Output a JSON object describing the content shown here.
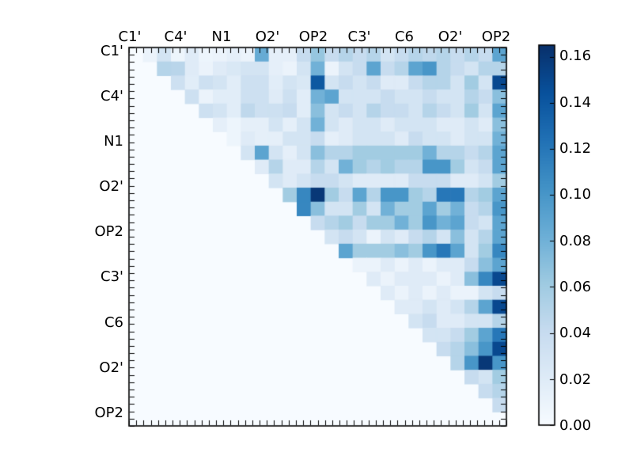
{
  "chart_data": {
    "type": "heatmap",
    "title": "",
    "xlabel": "",
    "ylabel": "",
    "x_tick_labels": [
      "C1'",
      "C4'",
      "N1",
      "O2'",
      "OP2",
      "C3'",
      "C6",
      "O2'",
      "OP2"
    ],
    "y_tick_labels": [
      "C1'",
      "C4'",
      "N1",
      "O2'",
      "OP2",
      "C3'",
      "C6",
      "O2'",
      "OP2"
    ],
    "n_rows": 27,
    "n_cols": 27,
    "triangular": "upper",
    "grid": false,
    "legend": false,
    "vmin": 0.0,
    "vmax": 0.165,
    "colormap": "Blues",
    "colormap_stops": [
      "#f7fbff",
      "#deebf7",
      "#c6dbef",
      "#9ecae1",
      "#6baed6",
      "#4292c6",
      "#2171b5",
      "#08519c",
      "#08306b"
    ],
    "colorbar": {
      "tick_labels": [
        "0.16",
        "0.14",
        "0.12",
        "0.10",
        "0.08",
        "0.06",
        "0.04",
        "0.02",
        "0.00"
      ],
      "tick_values": [
        0.16,
        0.14,
        0.12,
        0.1,
        0.08,
        0.06,
        0.04,
        0.02,
        0.0
      ],
      "position": "right"
    },
    "matrix": [
      [
        0,
        0.01,
        0.03,
        0.008,
        0.02,
        0.008,
        0.01,
        0.015,
        0.01,
        0.085,
        0.015,
        0.015,
        0.04,
        0.065,
        0.04,
        0.05,
        0.04,
        0.05,
        0.03,
        0.04,
        0.05,
        0.045,
        0.05,
        0.04,
        0.05,
        0.04,
        0.09
      ],
      [
        0,
        0,
        0.05,
        0.048,
        0.02,
        0.01,
        0.02,
        0.025,
        0.03,
        0.03,
        0.015,
        0.01,
        0.03,
        0.08,
        0.01,
        0.03,
        0.04,
        0.09,
        0.04,
        0.05,
        0.09,
        0.1,
        0.05,
        0.04,
        0.03,
        0.05,
        0.05
      ],
      [
        0,
        0,
        0,
        0.035,
        0.018,
        0.035,
        0.03,
        0.018,
        0.035,
        0.035,
        0.018,
        0.03,
        0.025,
        0.14,
        0.03,
        0.04,
        0.03,
        0.04,
        0.02,
        0.02,
        0.04,
        0.05,
        0.05,
        0.03,
        0.06,
        0.03,
        0.15
      ],
      [
        0,
        0,
        0,
        0,
        0.035,
        0.01,
        0.018,
        0.018,
        0.035,
        0.035,
        0.02,
        0.035,
        0.018,
        0.08,
        0.09,
        0.03,
        0.03,
        0.03,
        0.04,
        0.03,
        0.03,
        0.04,
        0.03,
        0.03,
        0.05,
        0.04,
        0.07
      ],
      [
        0,
        0,
        0,
        0,
        0,
        0.035,
        0.03,
        0.018,
        0.045,
        0.035,
        0.035,
        0.04,
        0.018,
        0.07,
        0.03,
        0.04,
        0.03,
        0.05,
        0.04,
        0.04,
        0.03,
        0.05,
        0.04,
        0.03,
        0.06,
        0.03,
        0.09
      ],
      [
        0,
        0,
        0,
        0,
        0,
        0,
        0.015,
        0.008,
        0.015,
        0.015,
        0.03,
        0.015,
        0.03,
        0.08,
        0.03,
        0.02,
        0.03,
        0.03,
        0.02,
        0.03,
        0.03,
        0.03,
        0.02,
        0.02,
        0.03,
        0.02,
        0.07
      ],
      [
        0,
        0,
        0,
        0,
        0,
        0,
        0,
        0.008,
        0.02,
        0.015,
        0.015,
        0.03,
        0.03,
        0.04,
        0.015,
        0.02,
        0.03,
        0.03,
        0.03,
        0.02,
        0.04,
        0.03,
        0.03,
        0.02,
        0.03,
        0.03,
        0.08
      ],
      [
        0,
        0,
        0,
        0,
        0,
        0,
        0,
        0,
        0.03,
        0.09,
        0.03,
        0.015,
        0.03,
        0.07,
        0.05,
        0.05,
        0.06,
        0.06,
        0.06,
        0.06,
        0.06,
        0.08,
        0.05,
        0.05,
        0.04,
        0.05,
        0.09
      ],
      [
        0,
        0,
        0,
        0,
        0,
        0,
        0,
        0,
        0,
        0.02,
        0.05,
        0.02,
        0.02,
        0.05,
        0.03,
        0.08,
        0.06,
        0.05,
        0.06,
        0.05,
        0.05,
        0.1,
        0.1,
        0.06,
        0.03,
        0.04,
        0.09
      ],
      [
        0,
        0,
        0,
        0,
        0,
        0,
        0,
        0,
        0,
        0,
        0.03,
        0.02,
        0.03,
        0.04,
        0.04,
        0.03,
        0.02,
        0.02,
        0.02,
        0.02,
        0.04,
        0.04,
        0.04,
        0.02,
        0.02,
        0.03,
        0.06
      ],
      [
        0,
        0,
        0,
        0,
        0,
        0,
        0,
        0,
        0,
        0,
        0,
        0.06,
        0.11,
        0.16,
        0.06,
        0.04,
        0.09,
        0.05,
        0.1,
        0.1,
        0.06,
        0.05,
        0.12,
        0.12,
        0.05,
        0.06,
        0.09
      ],
      [
        0,
        0,
        0,
        0,
        0,
        0,
        0,
        0,
        0,
        0,
        0,
        0,
        0.11,
        0.07,
        0.03,
        0.03,
        0.06,
        0.03,
        0.08,
        0.06,
        0.06,
        0.09,
        0.06,
        0.08,
        0.04,
        0.05,
        0.1
      ],
      [
        0,
        0,
        0,
        0,
        0,
        0,
        0,
        0,
        0,
        0,
        0,
        0,
        0,
        0.04,
        0.05,
        0.06,
        0.04,
        0.06,
        0.06,
        0.08,
        0.06,
        0.1,
        0.08,
        0.09,
        0.04,
        0.03,
        0.09
      ],
      [
        0,
        0,
        0,
        0,
        0,
        0,
        0,
        0,
        0,
        0,
        0,
        0,
        0,
        0,
        0.03,
        0.04,
        0.03,
        0.01,
        0.03,
        0.02,
        0.04,
        0.05,
        0.03,
        0.07,
        0.03,
        0.05,
        0.09
      ],
      [
        0,
        0,
        0,
        0,
        0,
        0,
        0,
        0,
        0,
        0,
        0,
        0,
        0,
        0,
        0,
        0.09,
        0.06,
        0.06,
        0.06,
        0.07,
        0.06,
        0.1,
        0.12,
        0.09,
        0.03,
        0.06,
        0.11
      ],
      [
        0,
        0,
        0,
        0,
        0,
        0,
        0,
        0,
        0,
        0,
        0,
        0,
        0,
        0,
        0,
        0,
        0.01,
        0.01,
        0.02,
        0.01,
        0.02,
        0.01,
        0.02,
        0.02,
        0.04,
        0.07,
        0.09
      ],
      [
        0,
        0,
        0,
        0,
        0,
        0,
        0,
        0,
        0,
        0,
        0,
        0,
        0,
        0,
        0,
        0,
        0,
        0.02,
        0.01,
        0.02,
        0.02,
        0.02,
        0.01,
        0.02,
        0.07,
        0.11,
        0.15
      ],
      [
        0,
        0,
        0,
        0,
        0,
        0,
        0,
        0,
        0,
        0,
        0,
        0,
        0,
        0,
        0,
        0,
        0,
        0,
        0.02,
        0.01,
        0.02,
        0.01,
        0.02,
        0.01,
        0.01,
        0.03,
        0.04
      ],
      [
        0,
        0,
        0,
        0,
        0,
        0,
        0,
        0,
        0,
        0,
        0,
        0,
        0,
        0,
        0,
        0,
        0,
        0,
        0,
        0.02,
        0.02,
        0.03,
        0.02,
        0.03,
        0.05,
        0.09,
        0.15
      ],
      [
        0,
        0,
        0,
        0,
        0,
        0,
        0,
        0,
        0,
        0,
        0,
        0,
        0,
        0,
        0,
        0,
        0,
        0,
        0,
        0,
        0.03,
        0.04,
        0.02,
        0.02,
        0.03,
        0.03,
        0.05
      ],
      [
        0,
        0,
        0,
        0,
        0,
        0,
        0,
        0,
        0,
        0,
        0,
        0,
        0,
        0,
        0,
        0,
        0,
        0,
        0,
        0,
        0,
        0.03,
        0.03,
        0.04,
        0.06,
        0.09,
        0.12
      ],
      [
        0,
        0,
        0,
        0,
        0,
        0,
        0,
        0,
        0,
        0,
        0,
        0,
        0,
        0,
        0,
        0,
        0,
        0,
        0,
        0,
        0,
        0,
        0.04,
        0.05,
        0.07,
        0.1,
        0.15
      ],
      [
        0,
        0,
        0,
        0,
        0,
        0,
        0,
        0,
        0,
        0,
        0,
        0,
        0,
        0,
        0,
        0,
        0,
        0,
        0,
        0,
        0,
        0,
        0,
        0.05,
        0.1,
        0.16,
        0.1
      ],
      [
        0,
        0,
        0,
        0,
        0,
        0,
        0,
        0,
        0,
        0,
        0,
        0,
        0,
        0,
        0,
        0,
        0,
        0,
        0,
        0,
        0,
        0,
        0,
        0,
        0.04,
        0.03,
        0.06
      ],
      [
        0,
        0,
        0,
        0,
        0,
        0,
        0,
        0,
        0,
        0,
        0,
        0,
        0,
        0,
        0,
        0,
        0,
        0,
        0,
        0,
        0,
        0,
        0,
        0,
        0,
        0.04,
        0.05
      ],
      [
        0,
        0,
        0,
        0,
        0,
        0,
        0,
        0,
        0,
        0,
        0,
        0,
        0,
        0,
        0,
        0,
        0,
        0,
        0,
        0,
        0,
        0,
        0,
        0,
        0,
        0,
        0.04
      ],
      [
        0,
        0,
        0,
        0,
        0,
        0,
        0,
        0,
        0,
        0,
        0,
        0,
        0,
        0,
        0,
        0,
        0,
        0,
        0,
        0,
        0,
        0,
        0,
        0,
        0,
        0,
        0
      ]
    ]
  }
}
